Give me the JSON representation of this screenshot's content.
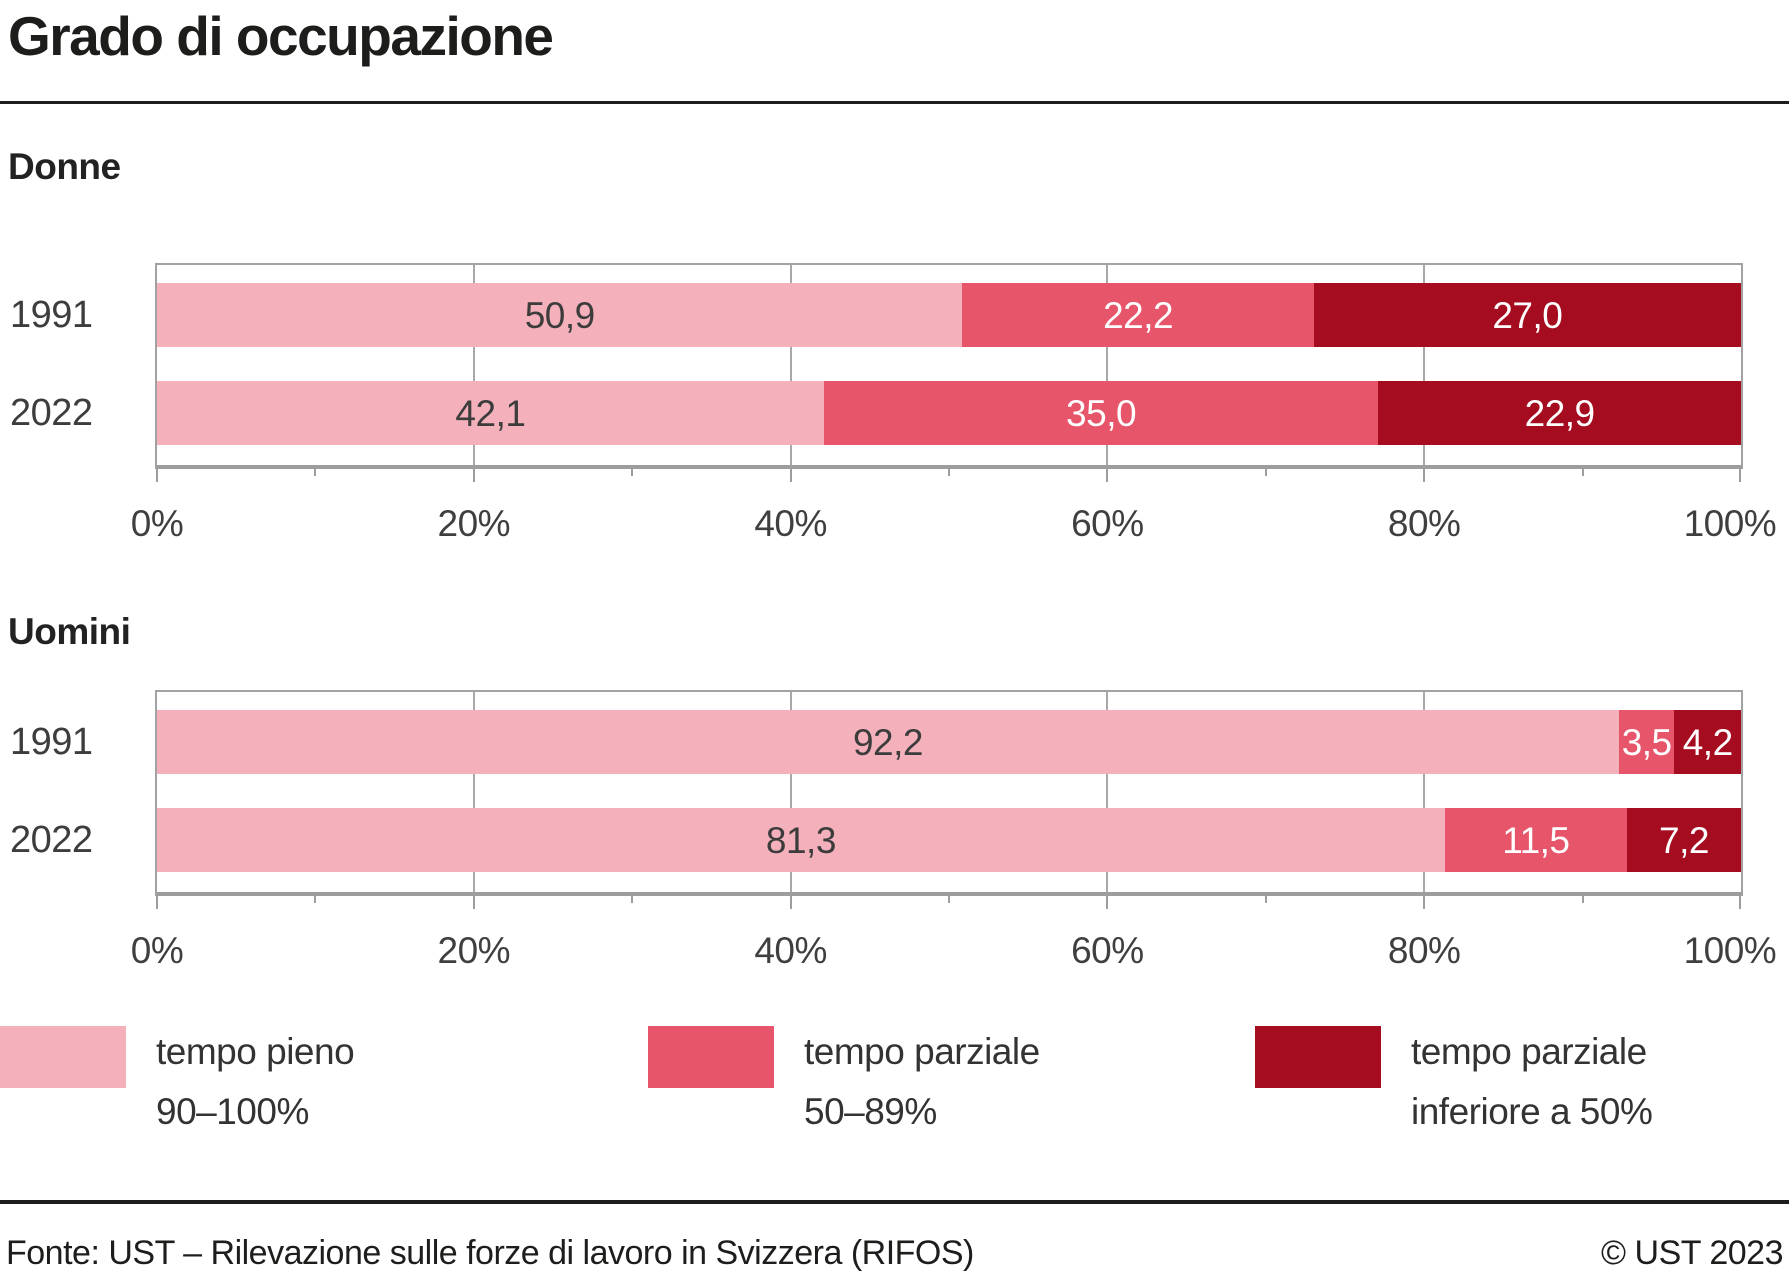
{
  "page_title": "Grado di occupazione",
  "chart_data": [
    {
      "type": "bar",
      "stacked": true,
      "orientation": "horizontal",
      "title": "Donne",
      "categories": [
        "1991",
        "2022"
      ],
      "series": [
        {
          "name": "tempo pieno 90–100%",
          "color": "#f4b1bc",
          "values": [
            50.9,
            42.1
          ]
        },
        {
          "name": "tempo parziale 50–89%",
          "color": "#e7556a",
          "values": [
            22.2,
            35.0
          ]
        },
        {
          "name": "tempo parziale inferiore a 50%",
          "color": "#a50c20",
          "values": [
            27.0,
            22.9
          ]
        }
      ],
      "value_labels": [
        [
          "50,9",
          "22,2",
          "27,0"
        ],
        [
          "42,1",
          "35,0",
          "22,9"
        ]
      ],
      "xlim": [
        0,
        100
      ],
      "xticks": [
        "0%",
        "20%",
        "40%",
        "60%",
        "80%",
        "100%"
      ],
      "grid": "vertical gridlines at 20/40/60/80, minor ticks every 10"
    },
    {
      "type": "bar",
      "stacked": true,
      "orientation": "horizontal",
      "title": "Uomini",
      "categories": [
        "1991",
        "2022"
      ],
      "series": [
        {
          "name": "tempo pieno 90–100%",
          "color": "#f4b1bc",
          "values": [
            92.2,
            81.3
          ]
        },
        {
          "name": "tempo parziale 50–89%",
          "color": "#e7556a",
          "values": [
            3.5,
            11.5
          ]
        },
        {
          "name": "tempo parziale inferiore a 50%",
          "color": "#a50c20",
          "values": [
            4.2,
            7.2
          ]
        }
      ],
      "value_labels": [
        [
          "92,2",
          "3,5",
          "4,2"
        ],
        [
          "81,3",
          "11,5",
          "7,2"
        ]
      ],
      "xlim": [
        0,
        100
      ],
      "xticks": [
        "0%",
        "20%",
        "40%",
        "60%",
        "80%",
        "100%"
      ],
      "grid": "vertical gridlines at 20/40/60/80, minor ticks every 10"
    }
  ],
  "legend": {
    "items": [
      {
        "line1": "tempo pieno",
        "line2": "90–100%",
        "color": "#f4b1bc"
      },
      {
        "line1": "tempo parziale",
        "line2": "50–89%",
        "color": "#e7556a"
      },
      {
        "line1": "tempo parziale",
        "line2": "inferiore a 50%",
        "color": "#a50c20"
      }
    ]
  },
  "footer": {
    "source": "Fonte: UST – Rilevazione sulle forze di lavoro in Svizzera (RIFOS)",
    "copyright": "© UST 2023"
  },
  "colors": {
    "segment_light_pink": "#f4b1bc",
    "segment_rose": "#e7556a",
    "segment_dark_red": "#a50c20",
    "axis_gray": "#9d9d9d",
    "frame_gray": "#a2a2a2",
    "text_dark": "#1d1d1b",
    "text_gray": "#3c3c3c"
  }
}
